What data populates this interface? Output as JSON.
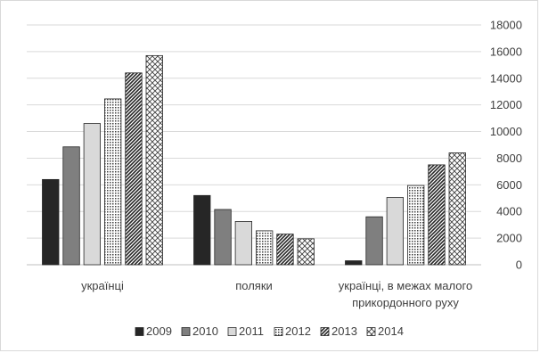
{
  "chart_data": {
    "type": "bar",
    "title": "",
    "xlabel": "",
    "ylabel": "",
    "ylim": [
      0,
      18000
    ],
    "ytick_step": 2000,
    "yaxis_side": "right",
    "grid": true,
    "legend_position": "bottom",
    "categories": [
      [
        "українці"
      ],
      [
        "поляки"
      ],
      [
        "українці, в межах малого",
        "прикордонного руху"
      ]
    ],
    "series": [
      {
        "name": "2009",
        "values": [
          6400,
          5200,
          300
        ],
        "fill": "#262626",
        "pattern": "solid"
      },
      {
        "name": "2010",
        "values": [
          8850,
          4150,
          3600
        ],
        "fill": "#7f7f7f",
        "pattern": "solid"
      },
      {
        "name": "2011",
        "values": [
          10600,
          3250,
          5050
        ],
        "fill": "#d9d9d9",
        "pattern": "solid"
      },
      {
        "name": "2012",
        "values": [
          12450,
          2550,
          5950
        ],
        "fill": "#ffffff",
        "pattern": "dots"
      },
      {
        "name": "2013",
        "values": [
          14400,
          2300,
          7500
        ],
        "fill": "#ffffff",
        "pattern": "diagonal"
      },
      {
        "name": "2014",
        "values": [
          15700,
          1950,
          8400
        ],
        "fill": "#ffffff",
        "pattern": "crosshatch"
      }
    ]
  }
}
